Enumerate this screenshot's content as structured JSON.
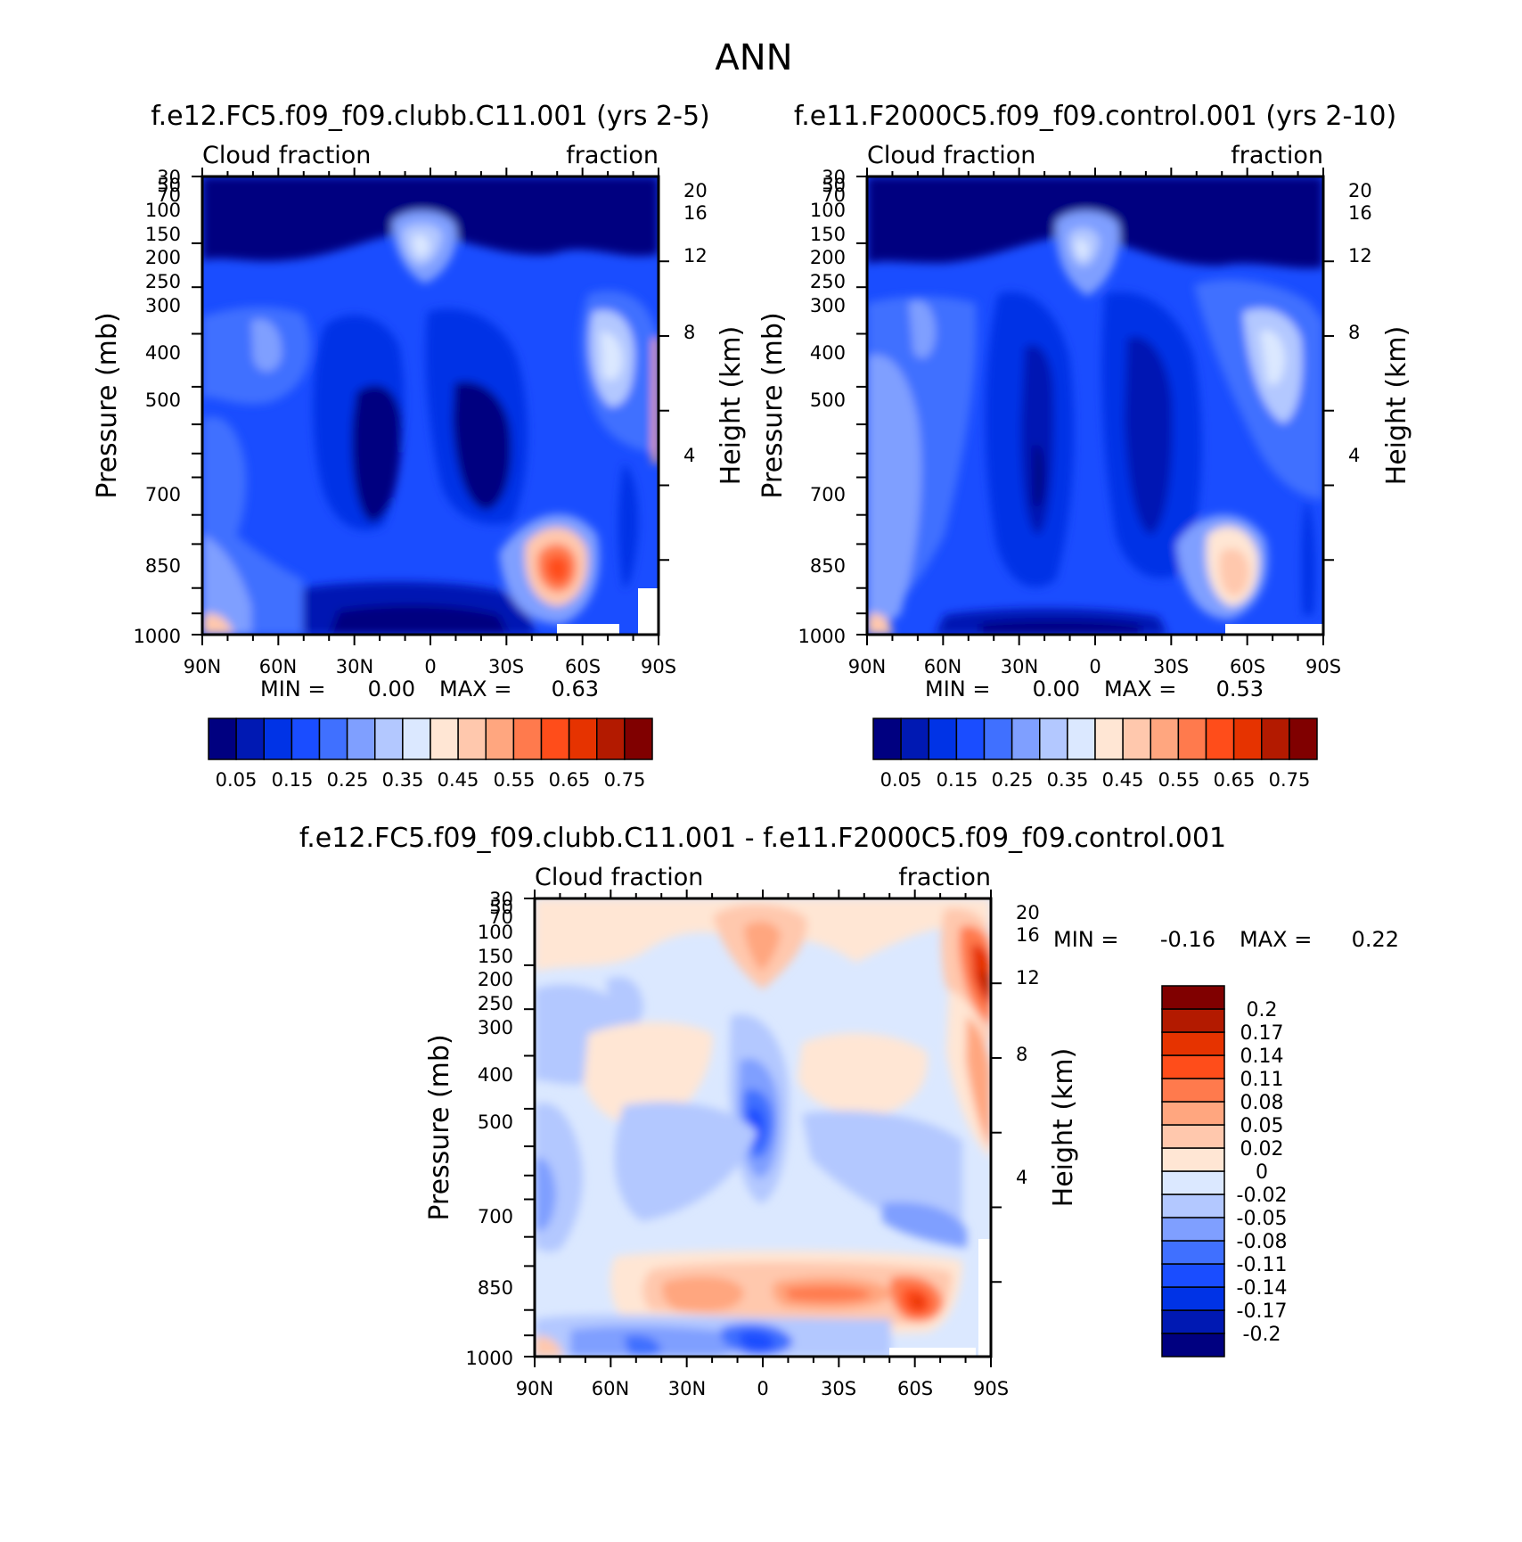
{
  "title": "ANN",
  "colors": {
    "cloud_scale": [
      "#000080",
      "#0019b3",
      "#0033e6",
      "#1a4dff",
      "#4070ff",
      "#7f9fff",
      "#b3c8ff",
      "#dbe8ff",
      "#ffe6d4",
      "#ffc8ad",
      "#ffa67f",
      "#ff7a4d",
      "#ff4d1a",
      "#e63300",
      "#b31a00",
      "#800000"
    ],
    "diff_scale": [
      "#000080",
      "#0019b3",
      "#0033e6",
      "#1a4dff",
      "#4070ff",
      "#7f9fff",
      "#b3c8ff",
      "#dbe8ff",
      "#ffe6d4",
      "#ffc8ad",
      "#ffa67f",
      "#ff7a4d",
      "#ff4d1a",
      "#e63300",
      "#b31a00",
      "#800000"
    ]
  },
  "chart_data": [
    {
      "type": "heatmap",
      "title": "f.e12.FC5.f09_f09.clubb.C11.001 (yrs 2-5)",
      "left_label": "Cloud fraction",
      "right_label": "fraction",
      "ylabel": "Pressure (mb)",
      "ylabel2": "Height (km)",
      "x_ticks": [
        "90N",
        "60N",
        "30N",
        "0",
        "30S",
        "60S",
        "90S"
      ],
      "y_ticks": [
        "30",
        "50",
        "70",
        "100",
        "150",
        "200",
        "250",
        "300",
        "400",
        "500",
        "700",
        "850",
        "1000"
      ],
      "y2_ticks": [
        "20",
        "16",
        "12",
        "8",
        "4"
      ],
      "stats": {
        "min_label": "MIN =",
        "min": "0.00",
        "max_label": "MAX =",
        "max": "0.63"
      },
      "colorbar_labels": [
        "0.05",
        "0.15",
        "0.25",
        "0.35",
        "0.45",
        "0.55",
        "0.65",
        "0.75"
      ]
    },
    {
      "type": "heatmap",
      "title": "f.e11.F2000C5.f09_f09.control.001 (yrs 2-10)",
      "left_label": "Cloud fraction",
      "right_label": "fraction",
      "ylabel": "Pressure (mb)",
      "ylabel2": "Height (km)",
      "x_ticks": [
        "90N",
        "60N",
        "30N",
        "0",
        "30S",
        "60S",
        "90S"
      ],
      "y_ticks": [
        "30",
        "50",
        "70",
        "100",
        "150",
        "200",
        "250",
        "300",
        "400",
        "500",
        "700",
        "850",
        "1000"
      ],
      "y2_ticks": [
        "20",
        "16",
        "12",
        "8",
        "4"
      ],
      "stats": {
        "min_label": "MIN =",
        "min": "0.00",
        "max_label": "MAX =",
        "max": "0.53"
      },
      "colorbar_labels": [
        "0.05",
        "0.15",
        "0.25",
        "0.35",
        "0.45",
        "0.55",
        "0.65",
        "0.75"
      ]
    },
    {
      "type": "heatmap",
      "title": "f.e12.FC5.f09_f09.clubb.C11.001 - f.e11.F2000C5.f09_f09.control.001",
      "left_label": "Cloud fraction",
      "right_label": "fraction",
      "ylabel": "Pressure (mb)",
      "ylabel2": "Height (km)",
      "x_ticks": [
        "90N",
        "60N",
        "30N",
        "0",
        "30S",
        "60S",
        "90S"
      ],
      "y_ticks": [
        "30",
        "50",
        "70",
        "100",
        "150",
        "200",
        "250",
        "300",
        "400",
        "500",
        "700",
        "850",
        "1000"
      ],
      "y2_ticks": [
        "20",
        "16",
        "12",
        "8",
        "4"
      ],
      "stats": {
        "min_label": "MIN =",
        "min": "-0.16",
        "max_label": "MAX =",
        "max": "0.22"
      },
      "colorbar_labels": [
        "0.2",
        "0.17",
        "0.14",
        "0.11",
        "0.08",
        "0.05",
        "0.02",
        "0",
        "-0.02",
        "-0.05",
        "-0.08",
        "-0.11",
        "-0.14",
        "-0.17",
        "-0.2"
      ]
    }
  ]
}
